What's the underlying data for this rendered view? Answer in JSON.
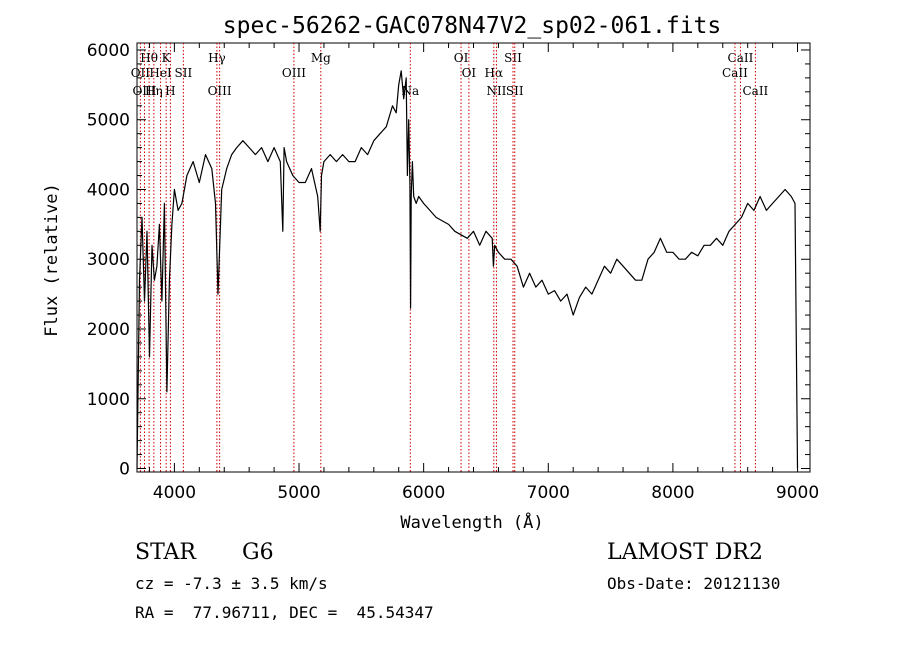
{
  "chart_data": {
    "type": "line",
    "title": "spec-56262-GAC078N47V2_sp02-061.fits",
    "xlabel": "Wavelength (Å)",
    "ylabel": "Flux (relative)",
    "xlim": [
      3700,
      9100
    ],
    "ylim": [
      -50,
      6100
    ],
    "x_ticks": [
      4000,
      5000,
      6000,
      7000,
      8000,
      9000
    ],
    "y_ticks": [
      0,
      1000,
      2000,
      3000,
      4000,
      5000,
      6000
    ],
    "grid": false,
    "series": [
      {
        "x": [
          3700,
          3720,
          3740,
          3760,
          3780,
          3800,
          3820,
          3840,
          3860,
          3880,
          3900,
          3920,
          3940,
          3960,
          3980,
          4000,
          4030,
          4060,
          4100,
          4150,
          4200,
          4250,
          4300,
          4330,
          4350,
          4380,
          4420,
          4460,
          4500,
          4550,
          4600,
          4650,
          4700,
          4750,
          4800,
          4850,
          4870,
          4880,
          4900,
          4950,
          5000,
          5050,
          5100,
          5150,
          5170,
          5180,
          5200,
          5250,
          5300,
          5350,
          5400,
          5450,
          5500,
          5550,
          5600,
          5650,
          5700,
          5750,
          5780,
          5800,
          5820,
          5840,
          5860,
          5870,
          5880,
          5890,
          5895,
          5900,
          5910,
          5920,
          5940,
          5960,
          6000,
          6050,
          6100,
          6150,
          6200,
          6250,
          6300,
          6350,
          6400,
          6450,
          6500,
          6550,
          6560,
          6570,
          6600,
          6650,
          6700,
          6750,
          6800,
          6850,
          6900,
          6950,
          7000,
          7050,
          7100,
          7150,
          7200,
          7250,
          7300,
          7350,
          7400,
          7450,
          7500,
          7550,
          7600,
          7650,
          7700,
          7750,
          7800,
          7850,
          7900,
          7950,
          8000,
          8050,
          8100,
          8150,
          8200,
          8250,
          8300,
          8350,
          8400,
          8450,
          8500,
          8550,
          8600,
          8650,
          8700,
          8750,
          8800,
          8850,
          8900,
          8950,
          8980,
          9000
        ],
        "y": [
          0,
          2700,
          3600,
          2400,
          3400,
          1600,
          3200,
          2700,
          2900,
          3500,
          2400,
          3800,
          1100,
          2700,
          3500,
          4000,
          3700,
          3800,
          4200,
          4400,
          4100,
          4500,
          4300,
          3800,
          2500,
          4000,
          4300,
          4500,
          4600,
          4700,
          4600,
          4500,
          4600,
          4400,
          4600,
          4400,
          3400,
          4600,
          4400,
          4200,
          4100,
          4100,
          4300,
          3900,
          3400,
          4200,
          4400,
          4500,
          4400,
          4500,
          4400,
          4400,
          4600,
          4500,
          4700,
          4800,
          4900,
          5200,
          5100,
          5500,
          5700,
          5300,
          5600,
          4200,
          5000,
          4100,
          2300,
          3900,
          4400,
          3900,
          3800,
          3900,
          3800,
          3700,
          3600,
          3550,
          3500,
          3400,
          3350,
          3300,
          3400,
          3200,
          3400,
          3300,
          2900,
          3200,
          3100,
          3000,
          3000,
          2900,
          2600,
          2800,
          2600,
          2700,
          2500,
          2550,
          2400,
          2500,
          2200,
          2450,
          2600,
          2500,
          2700,
          2900,
          2800,
          3000,
          2900,
          2800,
          2700,
          2700,
          3000,
          3100,
          3300,
          3100,
          3100,
          3000,
          3000,
          3100,
          3050,
          3200,
          3200,
          3300,
          3200,
          3400,
          3500,
          3600,
          3800,
          3700,
          3900,
          3700,
          3800,
          3900,
          4000,
          3900,
          3800,
          0
        ]
      }
    ],
    "line_markers": [
      {
        "label": "Hθ",
        "x": 3797,
        "row": 1
      },
      {
        "label": "K",
        "x": 3934,
        "row": 1
      },
      {
        "label": "Hγ",
        "x": 4341,
        "row": 1
      },
      {
        "label": "Mg",
        "x": 5175,
        "row": 1
      },
      {
        "label": "OI",
        "x": 6300,
        "row": 1
      },
      {
        "label": "SII",
        "x": 6717,
        "row": 1
      },
      {
        "label": "CaII",
        "x": 8542,
        "row": 1
      },
      {
        "label": "OII",
        "x": 3727,
        "row": 2
      },
      {
        "label": "HeI",
        "x": 3889,
        "row": 2
      },
      {
        "label": "SII",
        "x": 4072,
        "row": 2
      },
      {
        "label": "OIII",
        "x": 4959,
        "row": 2
      },
      {
        "label": "OI",
        "x": 6363,
        "row": 2
      },
      {
        "label": "Hα",
        "x": 6563,
        "row": 2
      },
      {
        "label": "CaII",
        "x": 8498,
        "row": 2
      },
      {
        "label": "OIII",
        "x": 3760,
        "row": 3
      },
      {
        "label": "Hη",
        "x": 3835,
        "row": 3
      },
      {
        "label": "H",
        "x": 3968,
        "row": 3
      },
      {
        "label": "OIII",
        "x": 4363,
        "row": 3
      },
      {
        "label": "Na",
        "x": 5893,
        "row": 3
      },
      {
        "label": "NII",
        "x": 6584,
        "row": 3
      },
      {
        "label": "SII",
        "x": 6731,
        "row": 3
      },
      {
        "label": "CaII",
        "x": 8662,
        "row": 3
      }
    ]
  },
  "info": {
    "object_class": "STAR",
    "subclass": "G6",
    "survey": "LAMOST DR2",
    "cz": "cz = -7.3 ± 3.5 km/s",
    "obs_date": "Obs-Date: 20121130",
    "coords": "RA =  77.96711, DEC =  45.54347"
  },
  "colors": {
    "axis": "#000000",
    "spectrum": "#000000",
    "marker": "#cc0000"
  }
}
